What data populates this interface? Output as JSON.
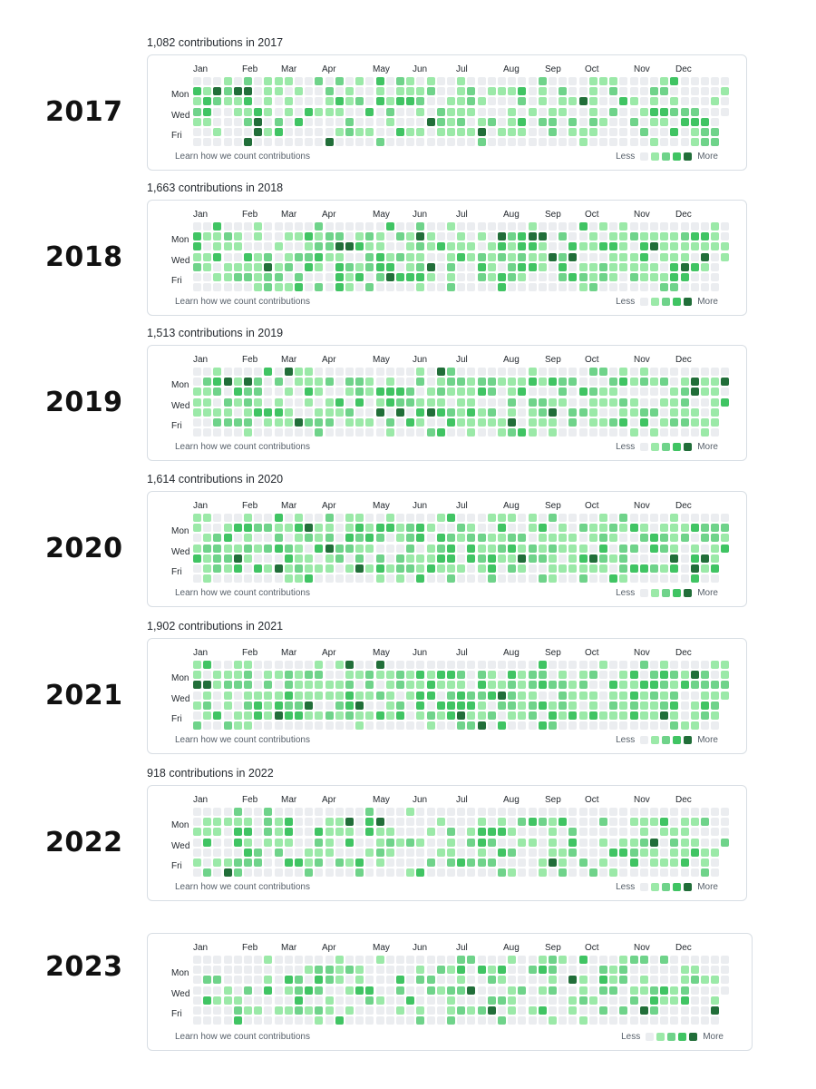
{
  "months": [
    "Jan",
    "Feb",
    "Mar",
    "Apr",
    "May",
    "Jun",
    "Jul",
    "Aug",
    "Sep",
    "Oct",
    "Nov",
    "Dec"
  ],
  "day_labels": [
    "Mon",
    "Wed",
    "Fri"
  ],
  "learn_text": "Learn how we count contributions",
  "legend": {
    "less": "Less",
    "more": "More"
  },
  "colors": {
    "lvl0": "#ebedf0",
    "lvl1": "#9be9a8",
    "lvl2": "#6fd38a",
    "lvl3": "#40c463",
    "lvl4": "#216e39"
  },
  "years": [
    {
      "year": "2017",
      "title": "1,082 contributions in 2017",
      "seed": 17,
      "density": 0.55
    },
    {
      "year": "2018",
      "title": "1,663 contributions in 2018",
      "seed": 18,
      "density": 0.75
    },
    {
      "year": "2019",
      "title": "1,513 contributions in 2019",
      "seed": 19,
      "density": 0.7
    },
    {
      "year": "2020",
      "title": "1,614 contributions in 2020",
      "seed": 20,
      "density": 0.75
    },
    {
      "year": "2021",
      "title": "1,902 contributions in 2021",
      "seed": 21,
      "density": 0.8
    },
    {
      "year": "2022",
      "title": "918 contributions in 2022",
      "seed": 22,
      "density": 0.55
    },
    {
      "year": "2023",
      "title": "",
      "seed": 23,
      "density": 0.45
    }
  ]
}
